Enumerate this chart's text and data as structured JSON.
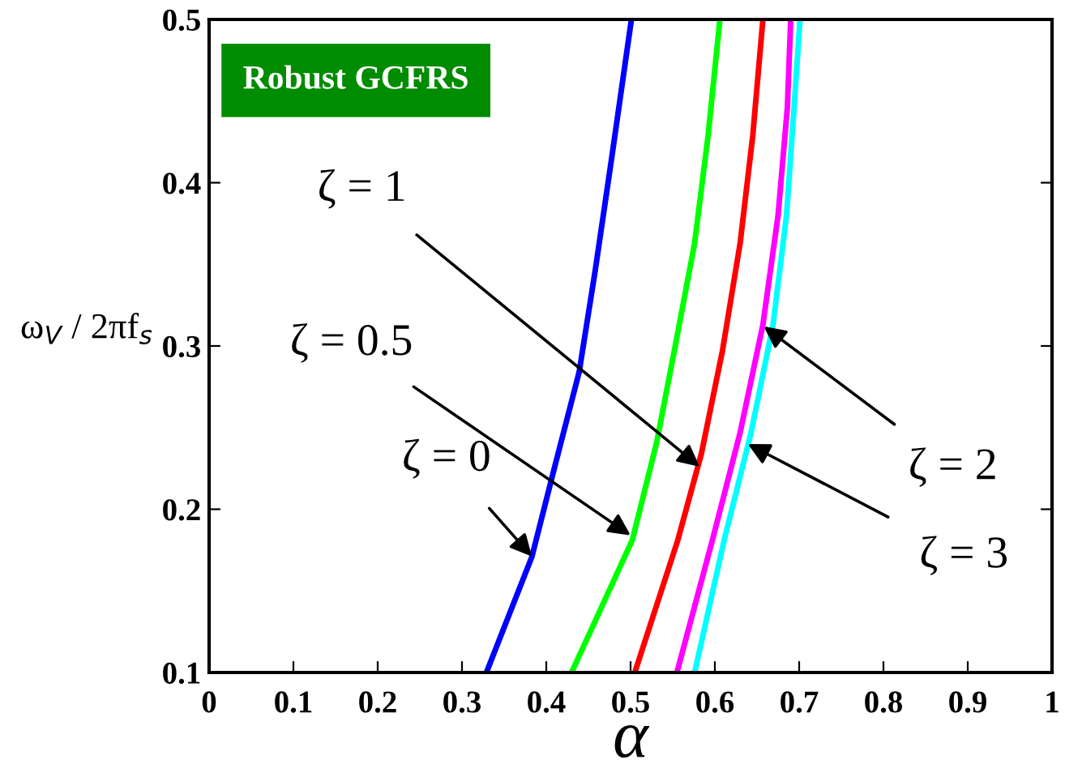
{
  "chart_data": {
    "type": "line",
    "xlabel": "α",
    "ylabel": "ω$_{V}$ / 2πf$_{s}$",
    "xlim": [
      0,
      1
    ],
    "ylim": [
      0.1,
      0.5
    ],
    "xticks": [
      0,
      0.1,
      0.2,
      0.3,
      0.4,
      0.5,
      0.6,
      0.7,
      0.8,
      0.9,
      1
    ],
    "yticks": [
      0.1,
      0.2,
      0.3,
      0.4,
      0.5
    ],
    "grid": false,
    "legend": false,
    "marker": "none",
    "line_style": "solid",
    "series": [
      {
        "color": "#0000ff",
        "x": [
          0.329,
          0.383,
          0.409,
          0.439,
          0.458,
          0.477,
          0.501
        ],
        "values": [
          0.1,
          0.171,
          0.224,
          0.284,
          0.346,
          0.413,
          0.5
        ]
      },
      {
        "color": "#00ff00",
        "x": [
          0.43,
          0.502,
          0.531,
          0.553,
          0.576,
          0.592,
          0.606
        ],
        "values": [
          0.1,
          0.181,
          0.241,
          0.3,
          0.363,
          0.429,
          0.5
        ]
      },
      {
        "color": "#ff0000",
        "x": [
          0.505,
          0.556,
          0.584,
          0.609,
          0.63,
          0.645,
          0.657
        ],
        "values": [
          0.1,
          0.181,
          0.234,
          0.297,
          0.363,
          0.429,
          0.5
        ]
      },
      {
        "color": "#ff00ff",
        "x": [
          0.555,
          0.597,
          0.63,
          0.657,
          0.675,
          0.686,
          0.69
        ],
        "values": [
          0.1,
          0.181,
          0.247,
          0.313,
          0.38,
          0.446,
          0.5
        ]
      },
      {
        "color": "#00ffff",
        "x": [
          0.576,
          0.611,
          0.643,
          0.669,
          0.685,
          0.694,
          0.701
        ],
        "values": [
          0.1,
          0.181,
          0.247,
          0.313,
          0.38,
          0.446,
          0.5
        ]
      }
    ],
    "annotations": [
      "Robust GCFRS",
      {
        "text": "ζ = 1",
        "x": 0.582,
        "y": 0.226
      },
      {
        "text": "ζ = 0.5",
        "x": 0.5,
        "y": 0.184
      },
      {
        "text": "ζ = 0",
        "x": 0.383,
        "y": 0.171
      },
      {
        "text": "ζ = 2",
        "x": 0.658,
        "y": 0.312
      },
      {
        "text": "ζ = 3",
        "x": 0.639,
        "y": 0.24
      }
    ]
  }
}
